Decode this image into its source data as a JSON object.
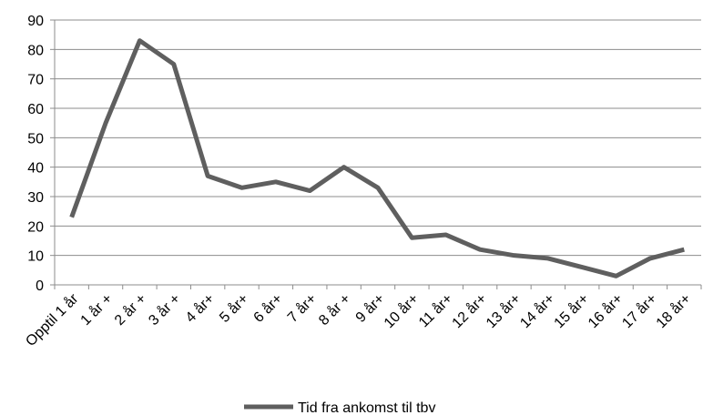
{
  "chart_data": {
    "type": "line",
    "categories": [
      "Opptil 1 år",
      "1 år +",
      "2 år +",
      "3 år +",
      "4 år+",
      "5 år+",
      "6 år+",
      "7 år+",
      "8 år +",
      "9 år+",
      "10 år+",
      "11 år+",
      "12 år+",
      "13 år+",
      "14 år+",
      "15 år+",
      "16 år+",
      "17 år+",
      "18 år+"
    ],
    "series": [
      {
        "name": "Tid fra ankomst til tbv",
        "values": [
          23,
          55,
          83,
          75,
          37,
          33,
          35,
          32,
          40,
          33,
          16,
          17,
          12,
          10,
          9,
          6,
          3,
          9,
          12
        ],
        "color": "#5f5f5f"
      }
    ],
    "ylim": [
      0,
      90
    ],
    "yticks": [
      "0",
      "10",
      "20",
      "30",
      "40",
      "50",
      "60",
      "70",
      "80",
      "90"
    ],
    "grid": true,
    "legend": "bottom",
    "gridColor": "#8c8c8c",
    "axisColor": "#8c8c8c"
  }
}
